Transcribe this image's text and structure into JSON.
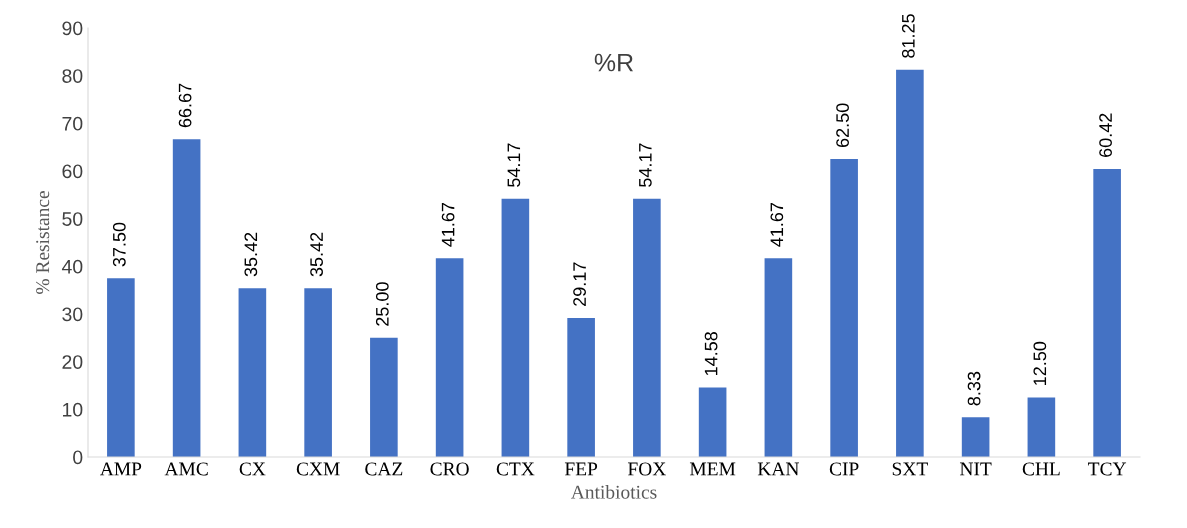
{
  "chart_data": {
    "type": "bar",
    "title": "%R",
    "xlabel": "Antibiotics",
    "ylabel": "% Resistance",
    "categories": [
      "AMP",
      "AMC",
      "CX",
      "CXM",
      "CAZ",
      "CRO",
      "CTX",
      "FEP",
      "FOX",
      "MEM",
      "KAN",
      "CIP",
      "SXT",
      "NIT",
      "CHL",
      "TCY"
    ],
    "values": [
      37.5,
      66.67,
      35.42,
      35.42,
      25.0,
      41.67,
      54.17,
      29.17,
      54.17,
      14.58,
      41.67,
      62.5,
      81.25,
      8.33,
      12.5,
      60.42
    ],
    "value_labels": [
      "37.50",
      "66.67",
      "35.42",
      "35.42",
      "25.00",
      "41.67",
      "54.17",
      "29.17",
      "54.17",
      "14.58",
      "41.67",
      "62.50",
      "81.25",
      "8.33",
      "12.50",
      "60.42"
    ],
    "color": "#4472c4",
    "ylim": [
      0,
      90
    ],
    "yticks": [
      0,
      10,
      20,
      30,
      40,
      50,
      60,
      70,
      80,
      90
    ],
    "grid": false
  }
}
